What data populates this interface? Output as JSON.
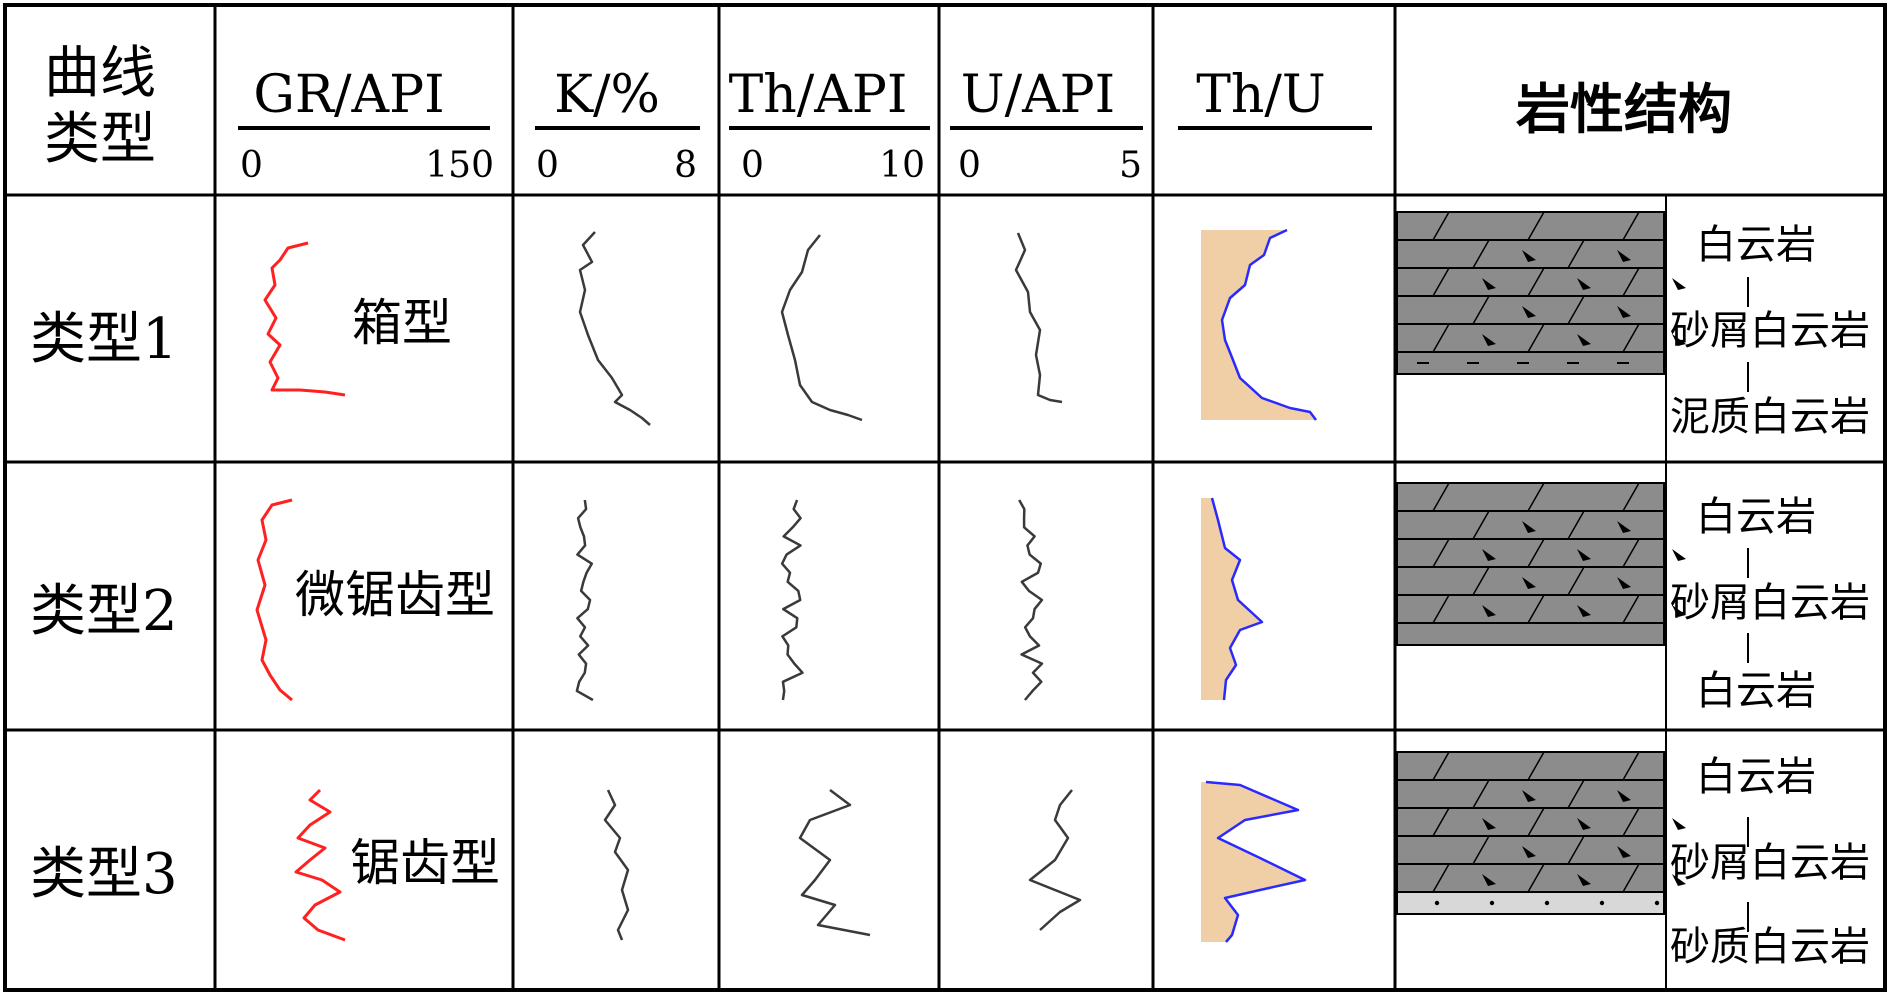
{
  "header": {
    "curve_type": [
      "曲线",
      "类型"
    ],
    "tracks": [
      {
        "label": "GR/API",
        "scale_min": "0",
        "scale_max": "150"
      },
      {
        "label": "K/%",
        "scale_min": "0",
        "scale_max": "8"
      },
      {
        "label": "Th/API",
        "scale_min": "0",
        "scale_max": "10"
      },
      {
        "label": "U/API",
        "scale_min": "0",
        "scale_max": "5"
      },
      {
        "label": "Th/U",
        "scale_min": "",
        "scale_max": ""
      }
    ],
    "lithology": "岩性结构"
  },
  "rows": [
    {
      "type_label": "类型1",
      "shape_label": "箱型",
      "lithology_labels": [
        "白云岩",
        "砂屑白云岩",
        "泥质白云岩"
      ],
      "bottom_band": "mud"
    },
    {
      "type_label": "类型2",
      "shape_label": "微锯齿型",
      "lithology_labels": [
        "白云岩",
        "砂屑白云岩",
        "白云岩"
      ],
      "bottom_band": "plain"
    },
    {
      "type_label": "类型3",
      "shape_label": "锯齿型",
      "lithology_labels": [
        "白云岩",
        "砂屑白云岩",
        "砂质白云岩"
      ],
      "bottom_band": "sand"
    }
  ],
  "colors": {
    "gr_curve": "#ff2020",
    "other_curve": "#3a3a3a",
    "thu_curve": "#2a2aff",
    "thu_fill": "#f1cfa6",
    "rock": "#8c8c8c",
    "sand_band": "#d8d8d8",
    "grid": "#000000"
  }
}
